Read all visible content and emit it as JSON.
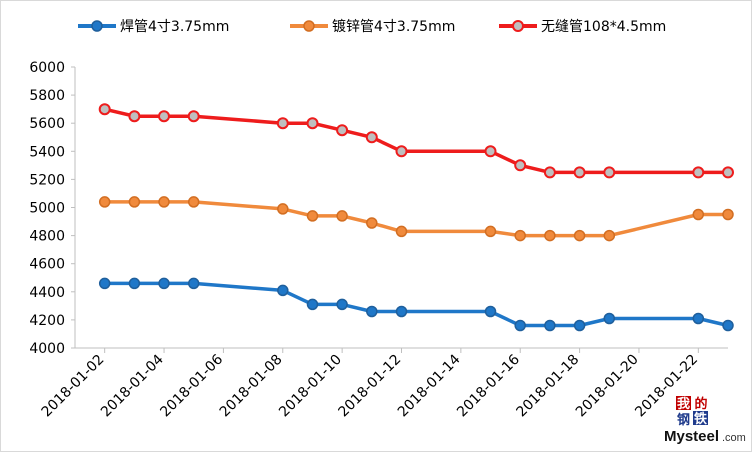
{
  "chart_data": {
    "type": "line",
    "title": "",
    "xlabel": "",
    "ylabel": "",
    "ylim": [
      4000,
      6000
    ],
    "yticks": [
      4000,
      4200,
      4400,
      4600,
      4800,
      5000,
      5200,
      5400,
      5600,
      5800,
      6000
    ],
    "x_tick_labels": [
      "2018-01-02",
      "2018-01-04",
      "2018-01-06",
      "2018-01-08",
      "2018-01-10",
      "2018-01-12",
      "2018-01-14",
      "2018-01-16",
      "2018-01-18",
      "2018-01-20",
      "2018-01-22"
    ],
    "grid": false,
    "legend_position": "top",
    "series": [
      {
        "name": "焊管4寸3.75mm",
        "color": "#1f77c8",
        "points": [
          {
            "x": "2018-01-02",
            "y": 4460
          },
          {
            "x": "2018-01-03",
            "y": 4460
          },
          {
            "x": "2018-01-04",
            "y": 4460
          },
          {
            "x": "2018-01-05",
            "y": 4460
          },
          {
            "x": "2018-01-08",
            "y": 4410
          },
          {
            "x": "2018-01-09",
            "y": 4310
          },
          {
            "x": "2018-01-10",
            "y": 4310
          },
          {
            "x": "2018-01-11",
            "y": 4260
          },
          {
            "x": "2018-01-12",
            "y": 4260
          },
          {
            "x": "2018-01-15",
            "y": 4260
          },
          {
            "x": "2018-01-16",
            "y": 4160
          },
          {
            "x": "2018-01-17",
            "y": 4160
          },
          {
            "x": "2018-01-18",
            "y": 4160
          },
          {
            "x": "2018-01-19",
            "y": 4210
          },
          {
            "x": "2018-01-22",
            "y": 4210
          },
          {
            "x": "2018-01-23",
            "y": 4160
          }
        ]
      },
      {
        "name": "镀锌管4寸3.75mm",
        "color": "#f08a3c",
        "points": [
          {
            "x": "2018-01-02",
            "y": 5040
          },
          {
            "x": "2018-01-03",
            "y": 5040
          },
          {
            "x": "2018-01-04",
            "y": 5040
          },
          {
            "x": "2018-01-05",
            "y": 5040
          },
          {
            "x": "2018-01-08",
            "y": 4990
          },
          {
            "x": "2018-01-09",
            "y": 4940
          },
          {
            "x": "2018-01-10",
            "y": 4940
          },
          {
            "x": "2018-01-11",
            "y": 4890
          },
          {
            "x": "2018-01-12",
            "y": 4830
          },
          {
            "x": "2018-01-15",
            "y": 4830
          },
          {
            "x": "2018-01-16",
            "y": 4800
          },
          {
            "x": "2018-01-17",
            "y": 4800
          },
          {
            "x": "2018-01-18",
            "y": 4800
          },
          {
            "x": "2018-01-19",
            "y": 4800
          },
          {
            "x": "2018-01-22",
            "y": 4950
          },
          {
            "x": "2018-01-23",
            "y": 4950
          }
        ]
      },
      {
        "name": "无缝管108*4.5mm",
        "color": "#ee1c1c",
        "marker_fill": "#bfbfbf",
        "points": [
          {
            "x": "2018-01-02",
            "y": 5700
          },
          {
            "x": "2018-01-03",
            "y": 5650
          },
          {
            "x": "2018-01-04",
            "y": 5650
          },
          {
            "x": "2018-01-05",
            "y": 5650
          },
          {
            "x": "2018-01-08",
            "y": 5600
          },
          {
            "x": "2018-01-09",
            "y": 5600
          },
          {
            "x": "2018-01-10",
            "y": 5550
          },
          {
            "x": "2018-01-11",
            "y": 5500
          },
          {
            "x": "2018-01-12",
            "y": 5400
          },
          {
            "x": "2018-01-15",
            "y": 5400
          },
          {
            "x": "2018-01-16",
            "y": 5300
          },
          {
            "x": "2018-01-17",
            "y": 5250
          },
          {
            "x": "2018-01-18",
            "y": 5250
          },
          {
            "x": "2018-01-19",
            "y": 5250
          },
          {
            "x": "2018-01-22",
            "y": 5250
          },
          {
            "x": "2018-01-23",
            "y": 5250
          }
        ]
      }
    ]
  },
  "watermark": {
    "chars": [
      "我",
      "的",
      "钢",
      "铁"
    ],
    "brand": "Mysteel",
    "suffix": ".com"
  }
}
